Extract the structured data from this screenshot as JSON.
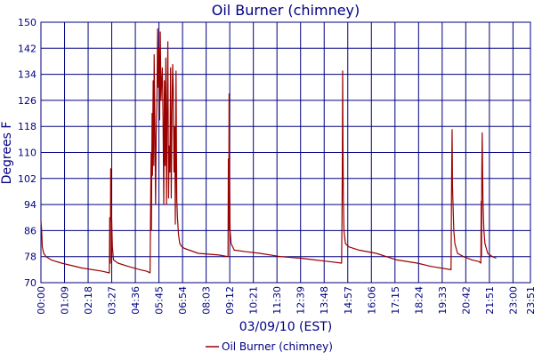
{
  "chart_data": {
    "type": "line",
    "title": "Oil Burner (chimney)",
    "xlabel": "03/09/10 (EST)",
    "ylabel": "Degrees F",
    "ylim": [
      70,
      150
    ],
    "y_ticks": [
      70,
      78,
      86,
      94,
      102,
      110,
      118,
      126,
      134,
      142,
      150
    ],
    "x_tick_labels": [
      "00:00",
      "01:09",
      "02:18",
      "03:27",
      "04:36",
      "05:45",
      "06:54",
      "08:03",
      "09:12",
      "10:21",
      "11:30",
      "12:39",
      "13:48",
      "14:57",
      "16:06",
      "17:15",
      "18:24",
      "19:33",
      "20:42",
      "21:51",
      "23:00",
      "23:51"
    ],
    "grid": true,
    "legend_position": "bottom",
    "series": [
      {
        "name": "Oil Burner (chimney)",
        "color": "#990000",
        "x_unit": "minutes after 00:00",
        "points": [
          [
            0,
            89
          ],
          [
            2,
            86
          ],
          [
            4,
            81
          ],
          [
            8,
            79
          ],
          [
            15,
            78
          ],
          [
            30,
            77
          ],
          [
            60,
            76
          ],
          [
            120,
            74.5
          ],
          [
            180,
            73.5
          ],
          [
            200,
            73
          ],
          [
            201,
            90
          ],
          [
            203,
            76
          ],
          [
            204,
            105
          ],
          [
            206,
            92
          ],
          [
            209,
            81
          ],
          [
            212,
            77
          ],
          [
            225,
            76
          ],
          [
            255,
            75
          ],
          [
            290,
            74
          ],
          [
            310,
            73.5
          ],
          [
            319,
            73
          ],
          [
            322,
            110
          ],
          [
            323,
            86
          ],
          [
            325,
            122
          ],
          [
            326,
            103
          ],
          [
            328,
            132
          ],
          [
            330,
            106
          ],
          [
            331,
            140
          ],
          [
            333,
            120
          ],
          [
            335,
            94
          ],
          [
            337,
            116
          ],
          [
            339,
            125
          ],
          [
            341,
            148
          ],
          [
            343,
            130
          ],
          [
            345,
            142
          ],
          [
            347,
            120
          ],
          [
            349,
            147
          ],
          [
            351,
            126
          ],
          [
            353,
            132
          ],
          [
            355,
            136
          ],
          [
            357,
            120
          ],
          [
            359,
            94
          ],
          [
            361,
            132
          ],
          [
            363,
            106
          ],
          [
            365,
            139
          ],
          [
            367,
            94
          ],
          [
            369,
            122
          ],
          [
            371,
            144
          ],
          [
            373,
            96
          ],
          [
            375,
            112
          ],
          [
            377,
            104
          ],
          [
            379,
            136
          ],
          [
            381,
            96
          ],
          [
            383,
            122
          ],
          [
            385,
            137
          ],
          [
            387,
            129
          ],
          [
            389,
            104
          ],
          [
            391,
            118
          ],
          [
            393,
            88
          ],
          [
            395,
            135
          ],
          [
            397,
            96
          ],
          [
            399,
            90
          ],
          [
            402,
            85
          ],
          [
            406,
            82
          ],
          [
            412,
            81
          ],
          [
            420,
            80.5
          ],
          [
            460,
            79
          ],
          [
            520,
            78.5
          ],
          [
            547,
            78
          ],
          [
            548,
            108
          ],
          [
            549,
            86
          ],
          [
            550,
            128
          ],
          [
            551,
            105
          ],
          [
            553,
            86
          ],
          [
            556,
            82
          ],
          [
            565,
            80
          ],
          [
            600,
            79.5
          ],
          [
            640,
            79
          ],
          [
            700,
            78
          ],
          [
            760,
            77.5
          ],
          [
            800,
            77
          ],
          [
            840,
            76.5
          ],
          [
            879,
            76
          ],
          [
            880,
            88
          ],
          [
            881,
            104
          ],
          [
            882,
            135
          ],
          [
            883,
            112
          ],
          [
            884,
            96
          ],
          [
            886,
            86
          ],
          [
            890,
            82
          ],
          [
            900,
            81
          ],
          [
            930,
            80
          ],
          [
            980,
            79
          ],
          [
            1040,
            77
          ],
          [
            1100,
            76
          ],
          [
            1140,
            75
          ],
          [
            1199,
            74
          ],
          [
            1200,
            92
          ],
          [
            1201,
            107
          ],
          [
            1202,
            117
          ],
          [
            1203,
            100
          ],
          [
            1204,
            96
          ],
          [
            1207,
            86
          ],
          [
            1210,
            82
          ],
          [
            1218,
            79
          ],
          [
            1235,
            78
          ],
          [
            1260,
            77
          ],
          [
            1280,
            76.5
          ],
          [
            1286,
            76
          ],
          [
            1287,
            95
          ],
          [
            1288,
            78
          ],
          [
            1289,
            105
          ],
          [
            1290,
            116
          ],
          [
            1291,
            106
          ],
          [
            1292,
            96
          ],
          [
            1295,
            86
          ],
          [
            1298,
            82
          ],
          [
            1306,
            79
          ],
          [
            1320,
            78
          ],
          [
            1331,
            77.5
          ]
        ]
      }
    ]
  }
}
